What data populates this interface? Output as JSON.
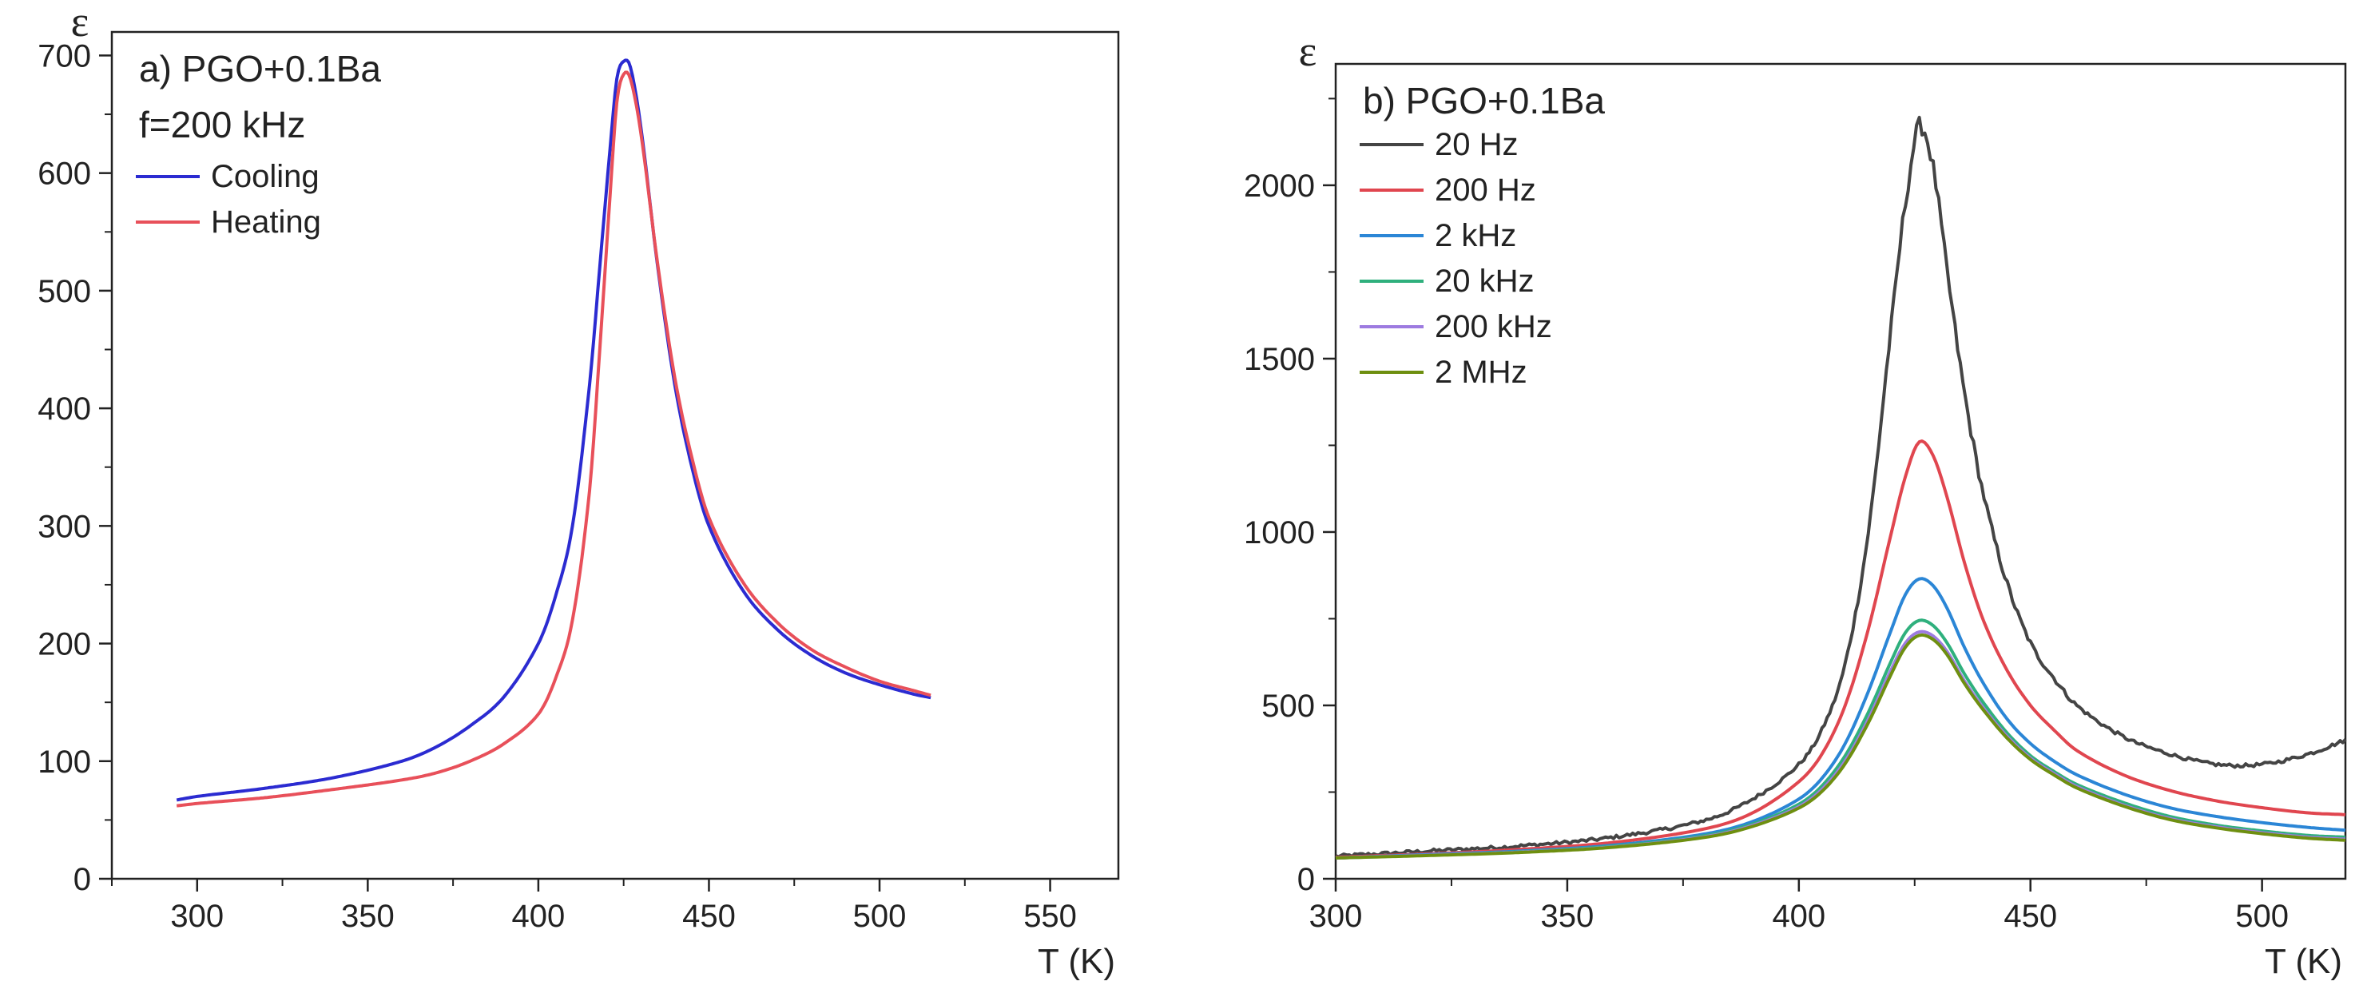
{
  "chart_data": [
    {
      "type": "line",
      "panel_label": "a) PGO+0.1Ba",
      "subtitle": "f=200 kHz",
      "xlabel": "T (K)",
      "ylabel": "ε",
      "xlim": [
        275,
        570
      ],
      "ylim": [
        0,
        720
      ],
      "x_ticks": [
        300,
        350,
        400,
        450,
        500,
        550
      ],
      "y_ticks": [
        0,
        100,
        200,
        300,
        400,
        500,
        600,
        700
      ],
      "x_minor_step": 25,
      "y_minor_step": 50,
      "grid": false,
      "legend_position": "top-left",
      "series": [
        {
          "name": "Cooling",
          "color": "#2b2bd1",
          "x": [
            294,
            300,
            320,
            340,
            360,
            370,
            380,
            390,
            400,
            405,
            410,
            415,
            418,
            421,
            423,
            425,
            427,
            430,
            435,
            440,
            445,
            450,
            460,
            470,
            480,
            490,
            500,
            510,
            515
          ],
          "y": [
            67,
            70,
            77,
            86,
            100,
            112,
            130,
            155,
            200,
            240,
            300,
            420,
            520,
            620,
            680,
            695,
            690,
            640,
            520,
            420,
            350,
            300,
            245,
            212,
            190,
            175,
            165,
            157,
            154
          ]
        },
        {
          "name": "Heating",
          "color": "#e8505a",
          "x": [
            294,
            300,
            320,
            340,
            360,
            370,
            380,
            390,
            400,
            405,
            410,
            415,
            418,
            421,
            423,
            425,
            427,
            430,
            435,
            440,
            445,
            450,
            460,
            470,
            480,
            490,
            500,
            510,
            515
          ],
          "y": [
            62,
            64,
            69,
            76,
            84,
            90,
            100,
            115,
            140,
            170,
            220,
            330,
            450,
            580,
            660,
            684,
            680,
            635,
            522,
            426,
            358,
            307,
            252,
            218,
            195,
            180,
            168,
            160,
            156
          ]
        }
      ]
    },
    {
      "type": "line",
      "panel_label": "b) PGO+0.1Ba",
      "xlabel": "T (K)",
      "ylabel": "ε",
      "xlim": [
        300,
        518
      ],
      "ylim": [
        0,
        2350
      ],
      "x_ticks": [
        300,
        350,
        400,
        450,
        500
      ],
      "y_ticks": [
        0,
        500,
        1000,
        1500,
        2000
      ],
      "x_minor_step": 25,
      "y_minor_step": 250,
      "grid": false,
      "legend_position": "top-left",
      "series": [
        {
          "name": "20 Hz",
          "color": "#444444",
          "noisy": true,
          "x": [
            300,
            320,
            340,
            360,
            380,
            390,
            400,
            405,
            410,
            415,
            420,
            423,
            426,
            429,
            432,
            436,
            440,
            445,
            450,
            455,
            460,
            470,
            480,
            490,
            500,
            510,
            518
          ],
          "y": [
            65,
            80,
            95,
            120,
            170,
            230,
            330,
            430,
            620,
            1000,
            1600,
            1950,
            2170,
            2050,
            1750,
            1380,
            1100,
            850,
            680,
            580,
            500,
            410,
            360,
            330,
            330,
            360,
            400
          ]
        },
        {
          "name": "200 Hz",
          "color": "#e0464f",
          "x": [
            300,
            320,
            340,
            360,
            380,
            390,
            400,
            405,
            410,
            415,
            420,
            423,
            426,
            429,
            432,
            436,
            440,
            445,
            450,
            455,
            460,
            470,
            480,
            490,
            500,
            510,
            518
          ],
          "y": [
            62,
            72,
            85,
            105,
            145,
            190,
            280,
            360,
            500,
            720,
            1000,
            1160,
            1260,
            1220,
            1100,
            900,
            740,
            600,
            500,
            430,
            370,
            300,
            255,
            225,
            205,
            190,
            185
          ]
        },
        {
          "name": "2 kHz",
          "color": "#2b86d6",
          "x": [
            300,
            320,
            340,
            360,
            380,
            390,
            400,
            405,
            410,
            415,
            420,
            423,
            426,
            429,
            432,
            436,
            440,
            445,
            450,
            455,
            460,
            470,
            480,
            490,
            500,
            510,
            518
          ],
          "y": [
            60,
            70,
            80,
            97,
            130,
            165,
            230,
            290,
            390,
            540,
            720,
            820,
            865,
            845,
            780,
            660,
            560,
            460,
            390,
            340,
            300,
            245,
            205,
            180,
            162,
            148,
            140
          ]
        },
        {
          "name": "20 kHz",
          "color": "#2fb07d",
          "x": [
            300,
            320,
            340,
            360,
            380,
            390,
            400,
            405,
            410,
            415,
            420,
            423,
            426,
            429,
            432,
            436,
            440,
            445,
            450,
            455,
            460,
            470,
            480,
            490,
            500,
            510,
            518
          ],
          "y": [
            60,
            68,
            78,
            94,
            125,
            158,
            215,
            268,
            355,
            480,
            630,
            710,
            745,
            730,
            680,
            585,
            505,
            420,
            355,
            310,
            272,
            220,
            180,
            155,
            138,
            125,
            120
          ]
        },
        {
          "name": "200 kHz",
          "color": "#9d7be0",
          "x": [
            300,
            320,
            340,
            360,
            380,
            390,
            400,
            405,
            410,
            415,
            420,
            423,
            426,
            429,
            432,
            436,
            440,
            445,
            450,
            455,
            460,
            470,
            480,
            490,
            500,
            510,
            518
          ],
          "y": [
            60,
            68,
            77,
            92,
            122,
            154,
            208,
            258,
            340,
            460,
            605,
            680,
            712,
            700,
            655,
            565,
            490,
            410,
            348,
            304,
            266,
            213,
            174,
            150,
            133,
            120,
            114
          ]
        },
        {
          "name": "2 MHz",
          "color": "#6e8f10",
          "x": [
            300,
            320,
            340,
            360,
            380,
            390,
            400,
            405,
            410,
            415,
            420,
            423,
            426,
            429,
            432,
            436,
            440,
            445,
            450,
            455,
            460,
            470,
            480,
            490,
            500,
            510,
            518
          ],
          "y": [
            60,
            67,
            76,
            91,
            120,
            151,
            204,
            252,
            332,
            450,
            592,
            668,
            702,
            690,
            646,
            558,
            484,
            405,
            344,
            300,
            262,
            210,
            171,
            147,
            130,
            117,
            111
          ]
        }
      ]
    }
  ]
}
